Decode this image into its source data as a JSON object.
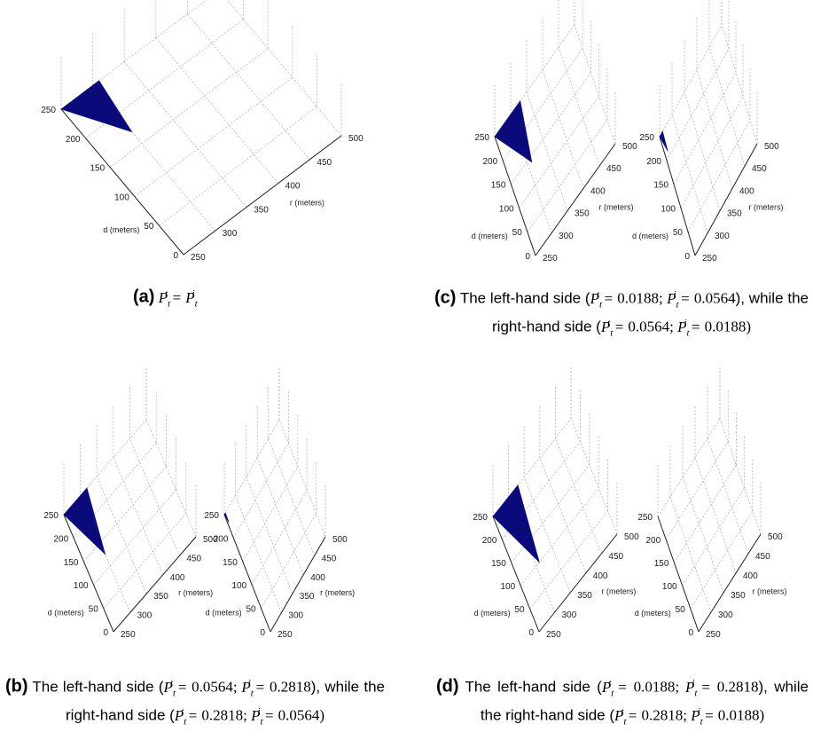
{
  "chart_data": [
    {
      "type": "surface",
      "panel": "a",
      "xlabel": "r (meters)",
      "ylabel": "d (meters)",
      "xlim": [
        250,
        500
      ],
      "ylim": [
        0,
        250
      ],
      "xticks": [
        "250",
        "300",
        "350",
        "400",
        "450",
        "500"
      ],
      "yticks": [
        "0",
        "50",
        "100",
        "150",
        "200",
        "250"
      ],
      "filled_region": [
        [
          250,
          250
        ],
        [
          310,
          250
        ],
        [
          300,
          170
        ]
      ],
      "caption": {
        "label": "(a)",
        "text": "P_t^t = P_t^i"
      }
    },
    {
      "type": "surface",
      "panel": "b",
      "subplots": [
        {
          "side": "left",
          "xlabel": "r (meters)",
          "ylabel": "d (meters)",
          "xlim": [
            250,
            500
          ],
          "ylim": [
            0,
            250
          ],
          "xticks": [
            "250",
            "300",
            "350",
            "400",
            "450",
            "500"
          ],
          "yticks": [
            "0",
            "50",
            "100",
            "150",
            "200",
            "250"
          ],
          "filled_region": [
            [
              250,
              250
            ],
            [
              320,
              250
            ],
            [
              300,
              125
            ]
          ]
        },
        {
          "side": "right",
          "xlabel": "r (meters)",
          "ylabel": "d (meters)",
          "xlim": [
            250,
            500
          ],
          "ylim": [
            0,
            250
          ],
          "xticks": [
            "250",
            "300",
            "350",
            "400",
            "450",
            "500"
          ],
          "yticks": [
            "0",
            "50",
            "100",
            "150",
            "200",
            "250"
          ],
          "filled_region": [
            [
              250,
              250
            ],
            [
              255,
              250
            ],
            [
              254,
              230
            ]
          ]
        }
      ],
      "caption": {
        "label": "(b)",
        "text": "The left-hand side (P_t^t = 0.0564; P_t^i = 0.2818), while the right-hand side (P_t^t = 0.2818; P_t^i = 0.0564)"
      }
    },
    {
      "type": "surface",
      "panel": "c",
      "subplots": [
        {
          "side": "left",
          "xlabel": "r (meters)",
          "ylabel": "d (meters)",
          "xlim": [
            250,
            500
          ],
          "ylim": [
            0,
            250
          ],
          "xticks": [
            "250",
            "300",
            "350",
            "400",
            "450",
            "500"
          ],
          "yticks": [
            "0",
            "50",
            "100",
            "150",
            "200",
            "250"
          ],
          "filled_region": [
            [
              250,
              250
            ],
            [
              330,
              250
            ],
            [
              310,
              140
            ]
          ]
        },
        {
          "side": "right",
          "xlabel": "r (meters)",
          "ylabel": "d (meters)",
          "xlim": [
            250,
            500
          ],
          "ylim": [
            0,
            250
          ],
          "xticks": [
            "250",
            "300",
            "350",
            "400",
            "450",
            "500"
          ],
          "yticks": [
            "0",
            "50",
            "100",
            "150",
            "200",
            "250"
          ],
          "filled_region": [
            [
              250,
              250
            ],
            [
              262,
              250
            ],
            [
              260,
              210
            ]
          ]
        }
      ],
      "caption": {
        "label": "(c)",
        "text": "The left-hand side (P_t^t = 0.0188; P_t^i = 0.0564), while the right-hand side (P_t^t = 0.0564; P_t^i = 0.0188)"
      }
    },
    {
      "type": "surface",
      "panel": "d",
      "subplots": [
        {
          "side": "left",
          "xlabel": "r (meters)",
          "ylabel": "d (meters)",
          "xlim": [
            250,
            500
          ],
          "ylim": [
            0,
            250
          ],
          "xticks": [
            "250",
            "300",
            "350",
            "400",
            "450",
            "500"
          ],
          "yticks": [
            "0",
            "50",
            "100",
            "150",
            "200",
            "250"
          ],
          "filled_region": [
            [
              250,
              250
            ],
            [
              330,
              250
            ],
            [
              310,
              100
            ]
          ]
        },
        {
          "side": "right",
          "xlabel": "r (meters)",
          "ylabel": "d (meters)",
          "xlim": [
            250,
            500
          ],
          "ylim": [
            0,
            250
          ],
          "xticks": [
            "250",
            "300",
            "350",
            "400",
            "450",
            "500"
          ],
          "yticks": [
            "0",
            "50",
            "100",
            "150",
            "200",
            "250"
          ],
          "filled_region": []
        }
      ],
      "caption": {
        "label": "(d)",
        "text": "The left-hand side (P_t^t = 0.0188; P_t^i = 0.2818), while the right-hand side (P_t^t = 0.2818; P_t^i = 0.0188)"
      }
    }
  ],
  "captions": {
    "a": {
      "label": "(a)"
    },
    "b": {
      "label": "(b)",
      "t1": "The left-hand side (",
      "t2": "), while the right-hand side (",
      "v1": "0.0564",
      "v2": "0.2818",
      "v3": "0.2818",
      "v4": "0.0564"
    },
    "c": {
      "label": "(c)",
      "t1": "The left-hand side (",
      "t2": "), while the right-hand side (",
      "v1": "0.0188",
      "v2": "0.0564",
      "v3": "0.0564",
      "v4": "0.0188"
    },
    "d": {
      "label": "(d)",
      "t1": "The left-hand side (",
      "t2": "), while the right-hand side (",
      "v1": "0.0188",
      "v2": "0.2818",
      "v3": "0.2818",
      "v4": "0.0188"
    }
  }
}
